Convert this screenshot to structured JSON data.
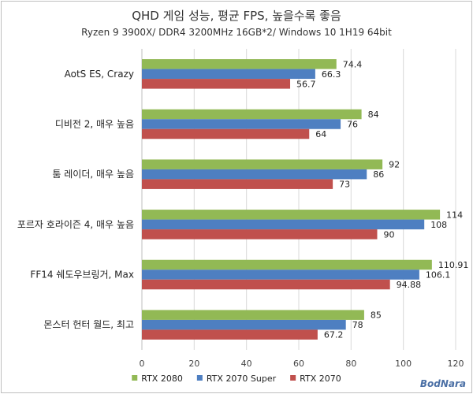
{
  "chart_data": {
    "type": "bar",
    "orientation": "horizontal",
    "title": "QHD 게임 성능, 평균 FPS, 높을수록 좋음",
    "subtitle": "Ryzen 9 3900X/ DDR4 3200MHz 16GB*2/ Windows 10 1H19 64bit",
    "categories": [
      "AotS ES, Crazy",
      "디비전 2, 매우 높음",
      "툼 레이더, 매우 높음",
      "포르자 호라이즌 4, 매우 높음",
      "FF14 쉐도우브링거, Max",
      "몬스터 헌터 월드, 최고"
    ],
    "series": [
      {
        "name": "RTX 2080",
        "color": "#92b955",
        "values": [
          74.4,
          84,
          92,
          114,
          110.91,
          85
        ],
        "labels": [
          "74.4",
          "84",
          "92",
          "114",
          "110.91",
          "85"
        ]
      },
      {
        "name": "RTX 2070 Super",
        "color": "#4e7fc1",
        "values": [
          66.3,
          76,
          86,
          108,
          106.1,
          78
        ],
        "labels": [
          "66.3",
          "76",
          "86",
          "108",
          "106.1",
          "78"
        ]
      },
      {
        "name": "RTX 2070",
        "color": "#c0504d",
        "values": [
          56.7,
          64,
          73,
          90,
          94.88,
          67.2
        ],
        "labels": [
          "56.7",
          "64",
          "73",
          "90",
          "94.88",
          "67.2"
        ]
      }
    ],
    "xlim": [
      0,
      120
    ],
    "xticks": [
      0,
      20,
      40,
      60,
      80,
      100,
      120
    ],
    "grid": true,
    "legend": "bottom"
  },
  "watermark": "BodNara"
}
